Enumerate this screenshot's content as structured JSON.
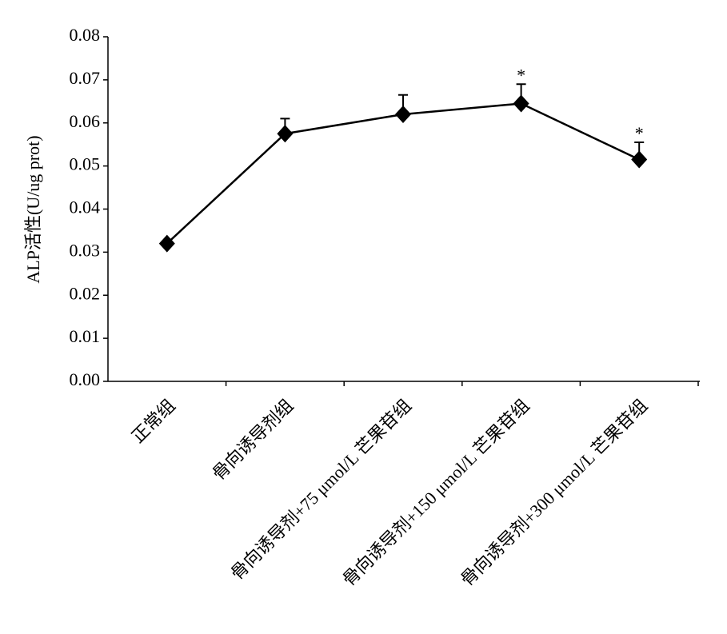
{
  "chart_data": {
    "type": "line",
    "y_label": "ALP活性(U/ug prot)",
    "categories": [
      "正常组",
      "骨向诱导剂组",
      "骨向诱导剂+75 μmol/L 芒果苷组",
      "骨向诱导剂+150 μmol/L 芒果苷组",
      "骨向诱导剂+300 μmol/L 芒果苷组"
    ],
    "values": [
      0.032,
      0.0575,
      0.062,
      0.0645,
      0.0515
    ],
    "errors": [
      null,
      0.0035,
      0.0045,
      0.0045,
      0.004
    ],
    "significance": [
      null,
      null,
      null,
      "*",
      "*"
    ],
    "color": "#000000",
    "ylim": [
      0,
      0.08
    ],
    "yticks": [
      {
        "value": 0,
        "label": "0.00"
      },
      0.01,
      0.02,
      0.03,
      0.04,
      0.05,
      0.06,
      0.07,
      0.08
    ],
    "grid": false
  }
}
